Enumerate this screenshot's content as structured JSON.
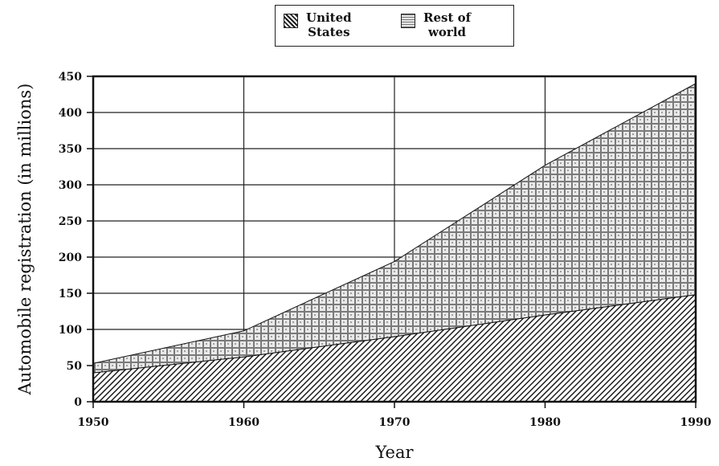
{
  "chart_data": {
    "type": "area",
    "stacked": true,
    "x": [
      1950,
      1960,
      1970,
      1980,
      1990
    ],
    "series": [
      {
        "name": "United\nStates",
        "values": [
          40,
          62,
          90,
          120,
          148
        ],
        "pattern": "diagonal-hatch",
        "color": "#2a2a2a"
      },
      {
        "name": "Rest of\nworld",
        "values": [
          13,
          36,
          104,
          207,
          292
        ],
        "pattern": "crosshatch",
        "color": "#8c8c8c"
      }
    ],
    "totals": [
      53,
      98,
      194,
      327,
      440
    ],
    "xlabel": "Year",
    "ylabel": "Automobile registration (in millions)",
    "xlim": [
      1950,
      1990
    ],
    "ylim": [
      0,
      450
    ],
    "xticks": [
      "1950",
      "1960",
      "1970",
      "1980",
      "1990"
    ],
    "yticks": [
      "0",
      "50",
      "100",
      "150",
      "200",
      "250",
      "300",
      "350",
      "400",
      "450"
    ],
    "grid": true,
    "legend_position": "top-center"
  }
}
